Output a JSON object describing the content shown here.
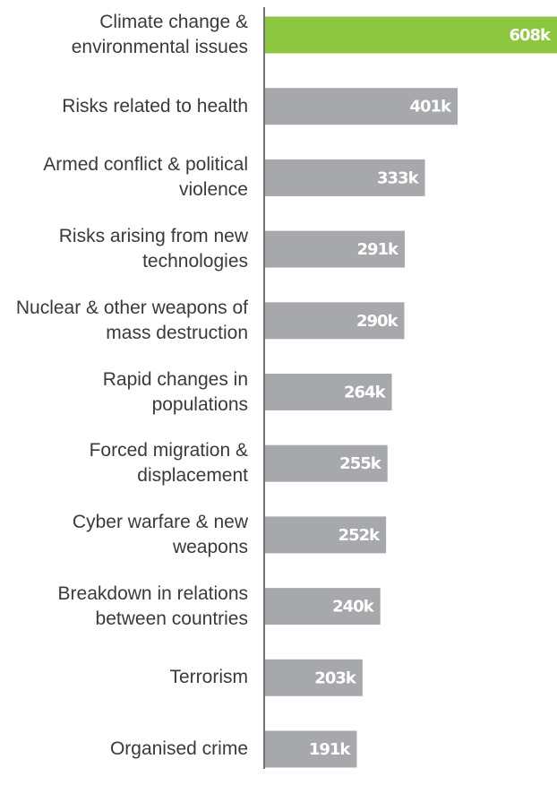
{
  "chart_data": {
    "type": "bar",
    "orientation": "horizontal",
    "categories": [
      "Climate change & environmental issues",
      "Risks related to health",
      "Armed conflict & political violence",
      "Risks arising from new technologies",
      "Nuclear & other weapons of mass destruction",
      "Rapid changes in populations",
      "Forced migration & displacement",
      "Cyber warfare & new weapons",
      "Breakdown in relations between countries",
      "Terrorism",
      "Organised crime"
    ],
    "values": [
      608000,
      401000,
      333000,
      291000,
      290000,
      264000,
      255000,
      252000,
      240000,
      203000,
      191000
    ],
    "value_labels": [
      "608k",
      "401k",
      "333k",
      "291k",
      "290k",
      "264k",
      "255k",
      "252k",
      "240k",
      "203k",
      "191k"
    ],
    "colors": [
      "#8dc63f",
      "#a7a8ab",
      "#a7a8ab",
      "#a7a8ab",
      "#a7a8ab",
      "#a7a8ab",
      "#a7a8ab",
      "#a7a8ab",
      "#a7a8ab",
      "#a7a8ab",
      "#a7a8ab"
    ],
    "xlim": [
      0,
      608000
    ]
  }
}
